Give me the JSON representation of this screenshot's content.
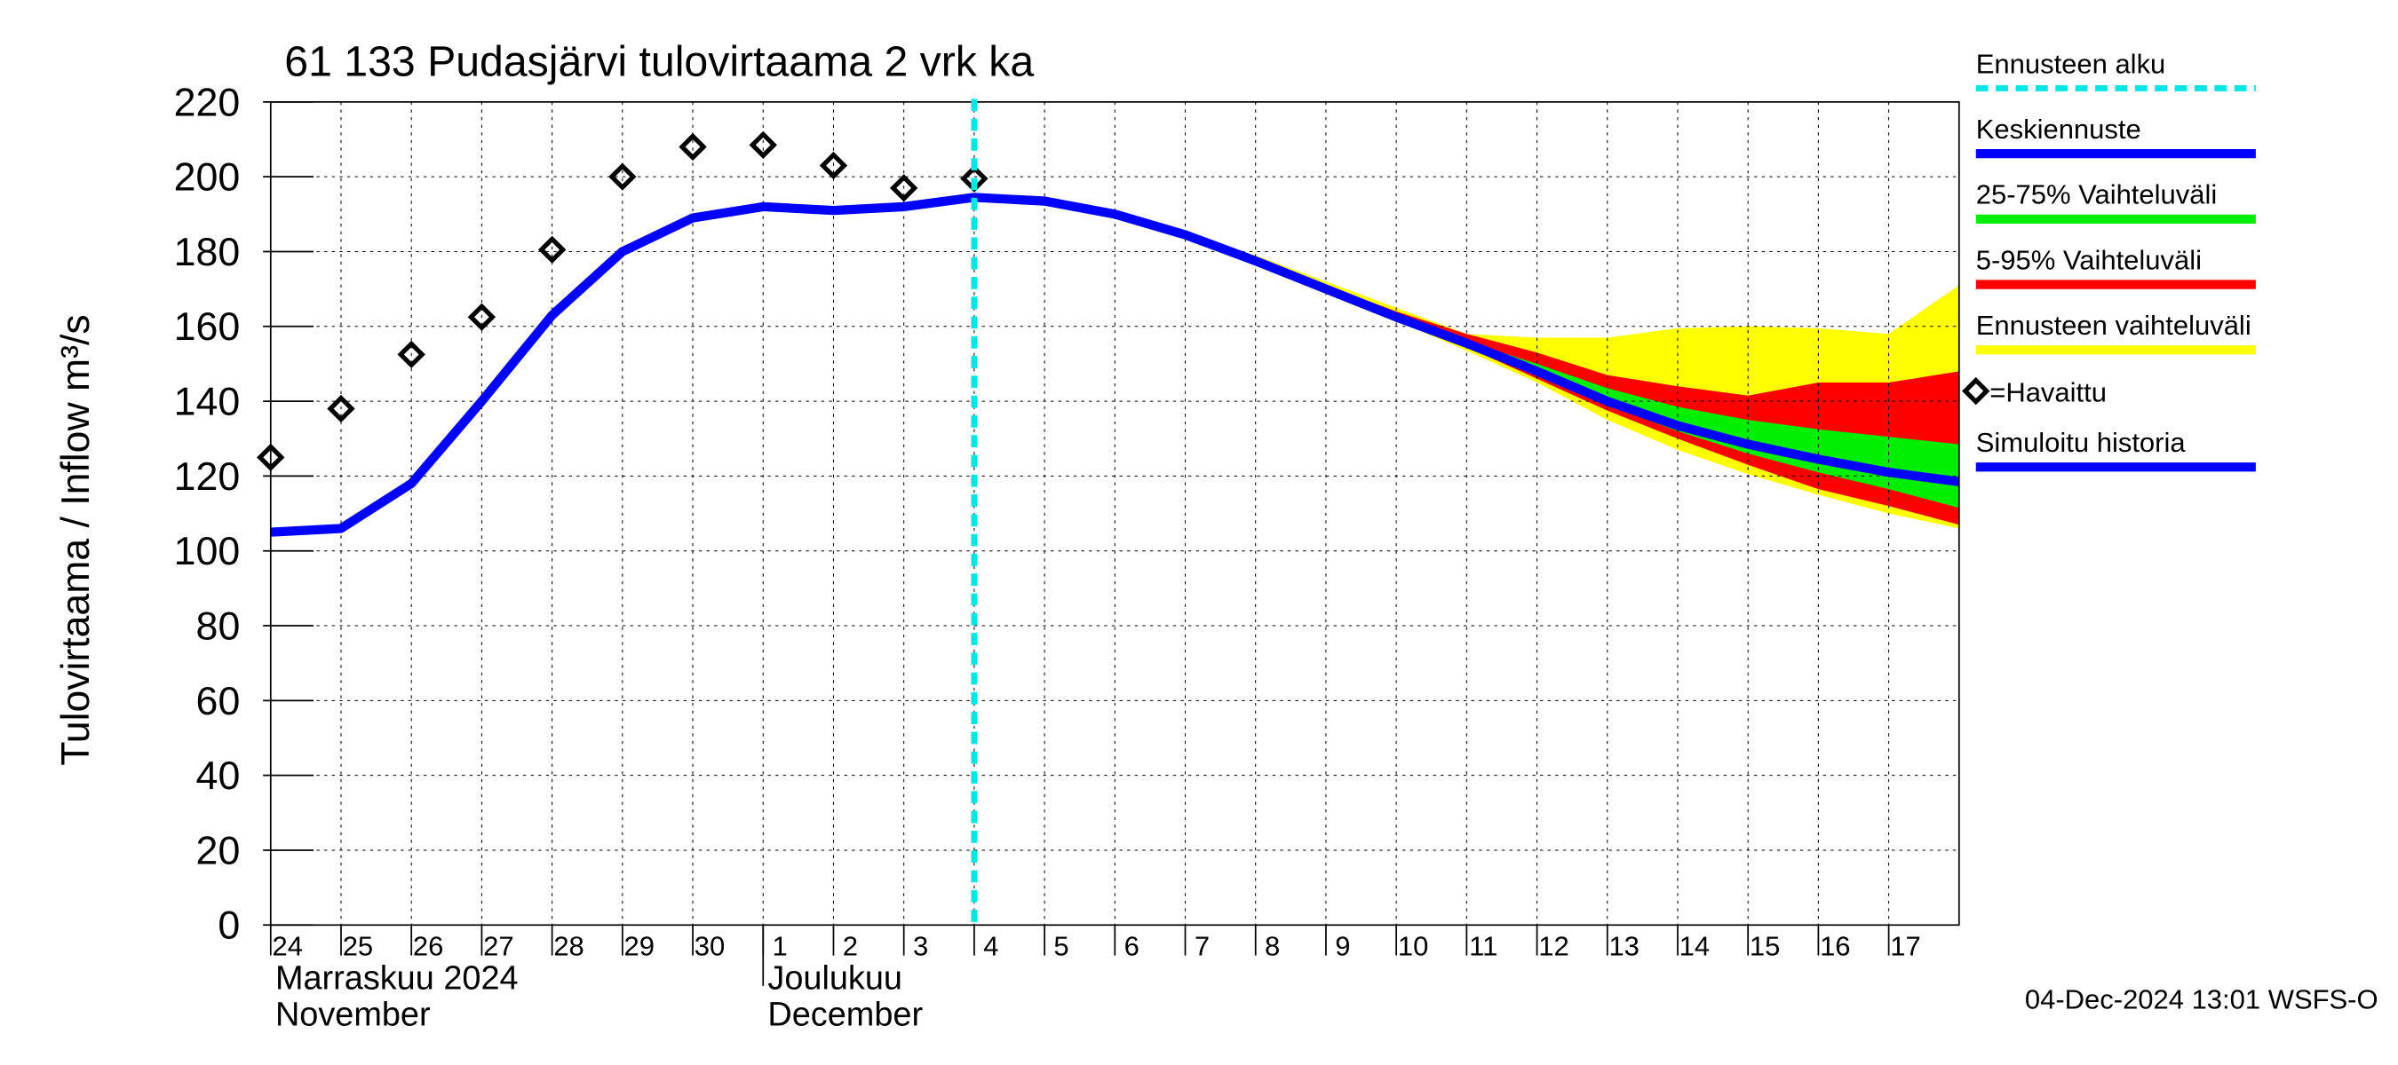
{
  "chart_data": {
    "type": "line",
    "title": "61 133 Pudasjärvi tulovirtaama 2 vrk ka",
    "y_label": "Tulovirtaama / Inflow    m³/s",
    "footer": "04-Dec-2024 13:01 WSFS-O",
    "xlim": [
      "2024-11-24",
      "2024-12-18"
    ],
    "ylim": [
      0,
      220
    ],
    "yticks": [
      0,
      20,
      40,
      60,
      80,
      100,
      120,
      140,
      160,
      180,
      200,
      220
    ],
    "grid": true,
    "xticks": [
      {
        "value": "2024-11-24",
        "label": "24"
      },
      {
        "value": "2024-11-25",
        "label": "25"
      },
      {
        "value": "2024-11-26",
        "label": "26"
      },
      {
        "value": "2024-11-27",
        "label": "27"
      },
      {
        "value": "2024-11-28",
        "label": "28"
      },
      {
        "value": "2024-11-29",
        "label": "29"
      },
      {
        "value": "2024-11-30",
        "label": "30"
      },
      {
        "value": "2024-12-01",
        "label": "1"
      },
      {
        "value": "2024-12-02",
        "label": "2"
      },
      {
        "value": "2024-12-03",
        "label": "3"
      },
      {
        "value": "2024-12-04",
        "label": "4"
      },
      {
        "value": "2024-12-05",
        "label": "5"
      },
      {
        "value": "2024-12-06",
        "label": "6"
      },
      {
        "value": "2024-12-07",
        "label": "7"
      },
      {
        "value": "2024-12-08",
        "label": "8"
      },
      {
        "value": "2024-12-09",
        "label": "9"
      },
      {
        "value": "2024-12-10",
        "label": "10"
      },
      {
        "value": "2024-12-11",
        "label": "11"
      },
      {
        "value": "2024-12-12",
        "label": "12"
      },
      {
        "value": "2024-12-13",
        "label": "13"
      },
      {
        "value": "2024-12-14",
        "label": "14"
      },
      {
        "value": "2024-12-15",
        "label": "15"
      },
      {
        "value": "2024-12-16",
        "label": "16"
      },
      {
        "value": "2024-12-17",
        "label": "17"
      }
    ],
    "month_labels": [
      {
        "x": "2024-11-24",
        "lines": [
          "Marraskuu 2024",
          "November"
        ]
      },
      {
        "x": "2024-12-01",
        "lines": [
          "Joulukuu",
          "December"
        ]
      }
    ],
    "series": [
      {
        "name": "Ennusteen alku",
        "kind": "vline",
        "color": "#00e6e6",
        "x": "2024-12-04"
      },
      {
        "name": "Keskiennuste",
        "kind": "line",
        "color": "#0000ff",
        "x": [
          "2024-12-04",
          "2024-12-05",
          "2024-12-06",
          "2024-12-07",
          "2024-12-08",
          "2024-12-09",
          "2024-12-10",
          "2024-12-11",
          "2024-12-12",
          "2024-12-13",
          "2024-12-14",
          "2024-12-15",
          "2024-12-16",
          "2024-12-17",
          "2024-12-18"
        ],
        "values": [
          194.5,
          193.5,
          190,
          184.5,
          177.5,
          170,
          162.5,
          155.5,
          148,
          140,
          133.5,
          128.5,
          124.5,
          121,
          118.5
        ]
      },
      {
        "name": "25-75% Vaihteluväli",
        "kind": "band",
        "color": "#00ee00",
        "x": [
          "2024-12-11",
          "2024-12-12",
          "2024-12-13",
          "2024-12-14",
          "2024-12-15",
          "2024-12-16",
          "2024-12-17",
          "2024-12-18"
        ],
        "upper": [
          156,
          150,
          143.5,
          138.5,
          135,
          132.5,
          130.5,
          128.5
        ],
        "lower": [
          155,
          147,
          139,
          132,
          126,
          121,
          116.5,
          111.5
        ]
      },
      {
        "name": "5-95% Vaihteluväli",
        "kind": "band",
        "color": "#ff0000",
        "x": [
          "2024-12-07",
          "2024-12-08",
          "2024-12-09",
          "2024-12-10",
          "2024-12-11",
          "2024-12-12",
          "2024-12-13",
          "2024-12-14",
          "2024-12-15",
          "2024-12-16",
          "2024-12-17",
          "2024-12-18"
        ],
        "upper": [
          185,
          178,
          171,
          164,
          158,
          153,
          147,
          144,
          141.5,
          145,
          145,
          148
        ],
        "lower": [
          184,
          177,
          169.5,
          162,
          154.5,
          146,
          137.5,
          130,
          123,
          116.5,
          112,
          107
        ]
      },
      {
        "name": "Ennusteen vaihteluväli",
        "kind": "band",
        "color": "#ffff00",
        "x": [
          "2024-12-07",
          "2024-12-08",
          "2024-12-09",
          "2024-12-10",
          "2024-12-11",
          "2024-12-12",
          "2024-12-13",
          "2024-12-14",
          "2024-12-15",
          "2024-12-16",
          "2024-12-17",
          "2024-12-18"
        ],
        "upper": [
          185,
          179,
          172,
          165,
          158,
          157,
          157,
          159.5,
          160,
          159.5,
          158,
          171
        ],
        "lower": [
          184,
          177,
          169,
          161.5,
          153.5,
          145,
          135,
          127,
          120.5,
          115,
          110,
          106
        ]
      },
      {
        "name": "=Havaittu",
        "kind": "marker",
        "color": "#000000",
        "x": [
          "2024-11-24",
          "2024-11-25",
          "2024-11-26",
          "2024-11-27",
          "2024-11-28",
          "2024-11-29",
          "2024-11-30",
          "2024-12-01",
          "2024-12-02",
          "2024-12-03",
          "2024-12-04"
        ],
        "values": [
          125,
          138,
          152.5,
          162.5,
          180.5,
          200,
          208,
          208.5,
          203,
          197,
          199.5
        ]
      },
      {
        "name": "Simuloitu historia",
        "kind": "line",
        "color": "#0000ff",
        "x": [
          "2024-11-24",
          "2024-11-25",
          "2024-11-26",
          "2024-11-27",
          "2024-11-28",
          "2024-11-29",
          "2024-11-30",
          "2024-12-01",
          "2024-12-02",
          "2024-12-03",
          "2024-12-04"
        ],
        "values": [
          105,
          106,
          118,
          140,
          163,
          180,
          189,
          192,
          191,
          192,
          194.5
        ]
      }
    ]
  }
}
